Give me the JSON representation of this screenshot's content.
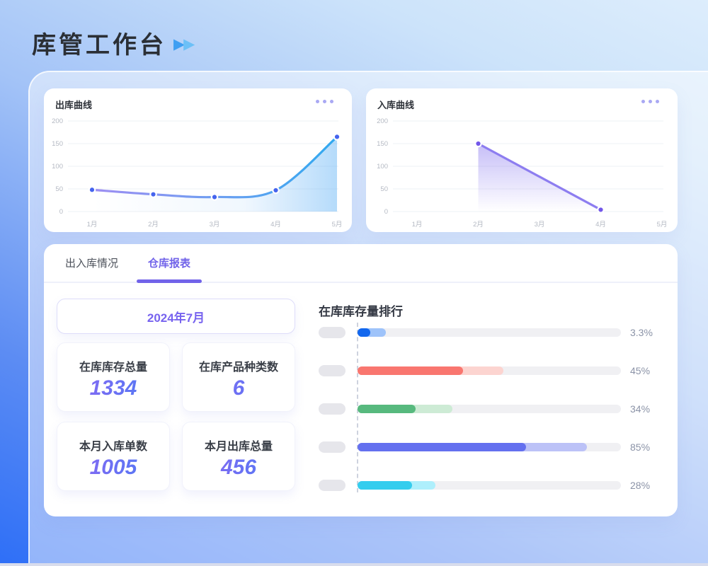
{
  "header": {
    "title": "库管工作台"
  },
  "icons": {
    "title_arrow": "double-play-icon",
    "card_menu": "ellipsis-icon"
  },
  "tabs": [
    {
      "label": "出入库情况",
      "active": false
    },
    {
      "label": "仓库报表",
      "active": true
    }
  ],
  "summary": {
    "period": "2024年7月",
    "stats": [
      {
        "label": "在库库存总量",
        "value": "1334"
      },
      {
        "label": "在库产品种类数",
        "value": "6"
      },
      {
        "label": "本月入库单数",
        "value": "1005"
      },
      {
        "label": "本月出库总量",
        "value": "456"
      }
    ]
  },
  "chart_data": [
    {
      "id": "outbound",
      "type": "line",
      "title": "出库曲线",
      "x": [
        "1月",
        "2月",
        "3月",
        "4月",
        "5月"
      ],
      "values": [
        48,
        38,
        32,
        47,
        165
      ],
      "ylim": [
        0,
        200
      ],
      "yticks": [
        0,
        50,
        100,
        150,
        200
      ],
      "grid": true,
      "line_colors": [
        "#9e8df2",
        "#35a7ef"
      ],
      "point_color": "#4564ee"
    },
    {
      "id": "inbound",
      "type": "line",
      "title": "入库曲线",
      "x": [
        "1月",
        "2月",
        "3月",
        "4月",
        "5月"
      ],
      "values": [
        null,
        150,
        null,
        4,
        null
      ],
      "ylim": [
        0,
        200
      ],
      "yticks": [
        0,
        50,
        100,
        150,
        200
      ],
      "grid": true,
      "line_colors": [
        "#8d7df0"
      ],
      "point_color": "#7257e9"
    },
    {
      "id": "ranking",
      "type": "bar",
      "orientation": "horizontal",
      "title": "在库库存量排行",
      "labels": [
        "3.3%",
        "45%",
        "34%",
        "85%",
        "28%"
      ],
      "values": [
        3.3,
        45,
        34,
        85,
        28
      ],
      "solid_pct": [
        4.8,
        40,
        22,
        64,
        20.7
      ],
      "tail_pct": [
        10.8,
        55.5,
        36,
        87,
        29.5
      ],
      "colors": [
        "#1267ee",
        "#f9766f",
        "#57b97e",
        "#6470ef",
        "#35cdee"
      ],
      "tail_colors": [
        "#9ec3fa",
        "#fcd4d0",
        "#cdebd5",
        "#bcc2f7",
        "#aeeffc"
      ]
    }
  ]
}
